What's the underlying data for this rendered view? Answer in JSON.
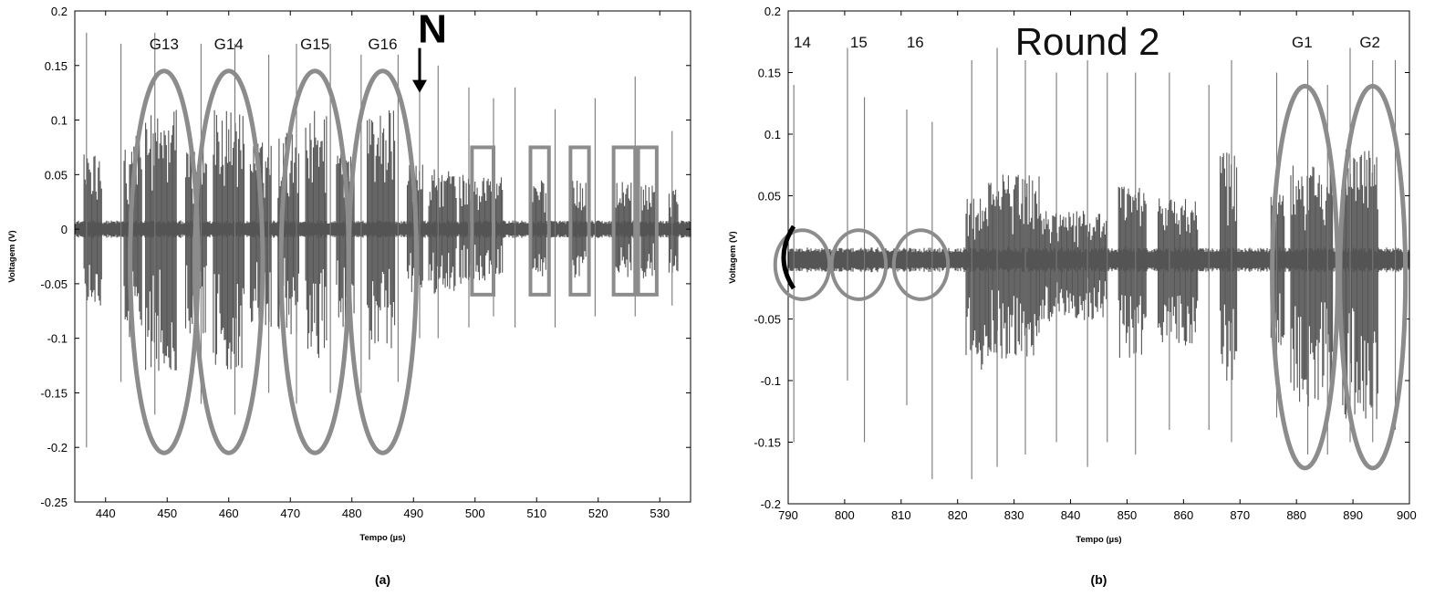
{
  "chart_data": [
    {
      "type": "line",
      "panel_label": "(a)",
      "xlabel": "Tempo (µs)",
      "ylabel": "Voltagem (V)",
      "xlim": [
        435,
        535
      ],
      "ylim": [
        -0.25,
        0.2
      ],
      "x_ticks": [
        440,
        450,
        460,
        470,
        480,
        490,
        500,
        510,
        520,
        530
      ],
      "y_ticks": [
        0.2,
        0.15,
        0.1,
        0.05,
        0,
        -0.05,
        -0.1,
        -0.15,
        -0.2,
        -0.25
      ],
      "y_tick_labels": [
        "0.2",
        "0.15",
        "0.1",
        "0.05",
        "0",
        "-0.05",
        "-0.1",
        "-0.15",
        "-0.2",
        "-0.25"
      ],
      "grid": false,
      "series": [
        {
          "baseline_amplitude": 0.008,
          "bursts": [
            {
              "start": 436.5,
              "end": 439.5,
              "pos": 0.07,
              "neg": -0.07
            },
            {
              "start": 443.0,
              "end": 446.0,
              "pos": 0.09,
              "neg": -0.1
            },
            {
              "start": 446.5,
              "end": 451.5,
              "pos": 0.11,
              "neg": -0.13
            },
            {
              "start": 453.0,
              "end": 456.5,
              "pos": 0.08,
              "neg": -0.1
            },
            {
              "start": 457.5,
              "end": 462.5,
              "pos": 0.11,
              "neg": -0.13
            },
            {
              "start": 463.5,
              "end": 467.0,
              "pos": 0.08,
              "neg": -0.1
            },
            {
              "start": 468.0,
              "end": 471.5,
              "pos": 0.09,
              "neg": -0.1
            },
            {
              "start": 472.5,
              "end": 476.0,
              "pos": 0.11,
              "neg": -0.12
            },
            {
              "start": 477.5,
              "end": 480.5,
              "pos": 0.08,
              "neg": -0.09
            },
            {
              "start": 482.5,
              "end": 487.0,
              "pos": 0.11,
              "neg": -0.12
            },
            {
              "start": 489.0,
              "end": 491.5,
              "pos": 0.06,
              "neg": -0.06
            },
            {
              "start": 492.5,
              "end": 497.0,
              "pos": 0.055,
              "neg": -0.06
            },
            {
              "start": 497.5,
              "end": 504.5,
              "pos": 0.05,
              "neg": -0.05
            },
            {
              "start": 509.0,
              "end": 511.5,
              "pos": 0.045,
              "neg": -0.045
            },
            {
              "start": 515.5,
              "end": 518.0,
              "pos": 0.045,
              "neg": -0.045
            },
            {
              "start": 522.5,
              "end": 525.5,
              "pos": 0.045,
              "neg": -0.045
            },
            {
              "start": 527.0,
              "end": 529.5,
              "pos": 0.045,
              "neg": -0.045
            },
            {
              "start": 531.5,
              "end": 533.0,
              "pos": 0.04,
              "neg": -0.04
            }
          ],
          "spikes": [
            {
              "x": 436.9,
              "pos": 0.18,
              "neg": -0.2
            },
            {
              "x": 442.5,
              "pos": 0.17,
              "neg": -0.14
            },
            {
              "x": 448.0,
              "pos": 0.18,
              "neg": -0.17
            },
            {
              "x": 455.5,
              "pos": 0.17,
              "neg": -0.16
            },
            {
              "x": 461.0,
              "pos": 0.17,
              "neg": -0.17
            },
            {
              "x": 466.5,
              "pos": 0.16,
              "neg": -0.15
            },
            {
              "x": 471.0,
              "pos": 0.17,
              "neg": -0.16
            },
            {
              "x": 476.5,
              "pos": 0.17,
              "neg": -0.15
            },
            {
              "x": 481.5,
              "pos": 0.16,
              "neg": -0.15
            },
            {
              "x": 487.5,
              "pos": 0.16,
              "neg": -0.14
            },
            {
              "x": 491.0,
              "pos": 0.14,
              "neg": -0.1
            },
            {
              "x": 494.0,
              "pos": 0.15,
              "neg": -0.1
            },
            {
              "x": 499.0,
              "pos": 0.13,
              "neg": -0.09
            },
            {
              "x": 503.0,
              "pos": 0.12,
              "neg": -0.08
            },
            {
              "x": 506.5,
              "pos": 0.13,
              "neg": -0.09
            },
            {
              "x": 513.0,
              "pos": 0.11,
              "neg": -0.09
            },
            {
              "x": 519.5,
              "pos": 0.12,
              "neg": -0.08
            },
            {
              "x": 526.0,
              "pos": 0.14,
              "neg": -0.08
            },
            {
              "x": 532.0,
              "pos": 0.09,
              "neg": -0.07
            }
          ]
        }
      ],
      "annotations": {
        "group_labels": [
          {
            "text": "G13",
            "x": 449.5,
            "y": 0.17
          },
          {
            "text": "G14",
            "x": 460.0,
            "y": 0.17
          },
          {
            "text": "G15",
            "x": 474.0,
            "y": 0.17
          },
          {
            "text": "G16",
            "x": 485.0,
            "y": 0.17
          }
        ],
        "ellipses": [
          {
            "cx": 449.5,
            "cy": -0.03,
            "rx": 5.5,
            "ry": 0.175
          },
          {
            "cx": 460.0,
            "cy": -0.03,
            "rx": 5.5,
            "ry": 0.175
          },
          {
            "cx": 474.0,
            "cy": -0.03,
            "rx": 5.5,
            "ry": 0.175
          },
          {
            "cx": 485.0,
            "cy": -0.03,
            "rx": 5.5,
            "ry": 0.175
          }
        ],
        "rectangles": [
          {
            "x0": 499.5,
            "x1": 503.0,
            "y0": -0.06,
            "y1": 0.075
          },
          {
            "x0": 509.0,
            "x1": 512.0,
            "y0": -0.06,
            "y1": 0.075
          },
          {
            "x0": 515.5,
            "x1": 518.5,
            "y0": -0.06,
            "y1": 0.075
          },
          {
            "x0": 522.5,
            "x1": 526.0,
            "y0": -0.06,
            "y1": 0.075
          },
          {
            "x0": 526.5,
            "x1": 529.5,
            "y0": -0.06,
            "y1": 0.075
          }
        ],
        "arrow": {
          "label": "N",
          "x": 491.0,
          "y_top": 0.166,
          "y_bottom": 0.125
        }
      }
    },
    {
      "type": "line",
      "panel_label": "(b)",
      "xlabel": "Tempo (µs)",
      "ylabel": "Voltagem (V)",
      "xlim": [
        790,
        900
      ],
      "ylim": [
        -0.2,
        0.2
      ],
      "x_ticks": [
        790,
        800,
        810,
        820,
        830,
        840,
        850,
        860,
        870,
        880,
        890,
        900
      ],
      "x_tick_labels": [
        "790",
        "800",
        "810",
        "820",
        "830",
        "840",
        "850",
        "860",
        "870",
        "880",
        "890",
        "900"
      ],
      "y_ticks": [
        0.2,
        0.15,
        0.1,
        0.05,
        -0.05,
        -0.1,
        -0.15,
        -0.2
      ],
      "y_tick_labels": [
        "0.2",
        "0.15",
        "0.1",
        "0.05",
        "-0.05",
        "-0.1",
        "-0.15",
        "-0.2"
      ],
      "grid": false,
      "series": [
        {
          "baseline_amplitude": 0.01,
          "baseline_center": -0.002,
          "bursts": [
            {
              "start": 821.5,
              "end": 825.5,
              "pos": 0.05,
              "neg": -0.09
            },
            {
              "start": 825.5,
              "end": 834.5,
              "pos": 0.07,
              "neg": -0.08
            },
            {
              "start": 834.5,
              "end": 846.5,
              "pos": 0.04,
              "neg": -0.05
            },
            {
              "start": 848.5,
              "end": 853.5,
              "pos": 0.06,
              "neg": -0.08
            },
            {
              "start": 855.5,
              "end": 862.5,
              "pos": 0.05,
              "neg": -0.07
            },
            {
              "start": 866.5,
              "end": 869.5,
              "pos": 0.09,
              "neg": -0.1
            },
            {
              "start": 875.5,
              "end": 878.0,
              "pos": 0.06,
              "neg": -0.07
            },
            {
              "start": 879.0,
              "end": 886.5,
              "pos": 0.08,
              "neg": -0.12
            },
            {
              "start": 888.0,
              "end": 894.5,
              "pos": 0.09,
              "neg": -0.13
            }
          ],
          "spikes": [
            {
              "x": 791.0,
              "pos": 0.14,
              "neg": -0.15
            },
            {
              "x": 800.5,
              "pos": 0.17,
              "neg": -0.1
            },
            {
              "x": 803.5,
              "pos": 0.13,
              "neg": -0.15
            },
            {
              "x": 811.0,
              "pos": 0.12,
              "neg": -0.12
            },
            {
              "x": 815.5,
              "pos": 0.11,
              "neg": -0.18
            },
            {
              "x": 822.5,
              "pos": 0.16,
              "neg": -0.18
            },
            {
              "x": 827.0,
              "pos": 0.17,
              "neg": -0.17
            },
            {
              "x": 832.0,
              "pos": 0.16,
              "neg": -0.16
            },
            {
              "x": 837.5,
              "pos": 0.15,
              "neg": -0.15
            },
            {
              "x": 843.0,
              "pos": 0.16,
              "neg": -0.17
            },
            {
              "x": 846.5,
              "pos": 0.15,
              "neg": -0.15
            },
            {
              "x": 851.5,
              "pos": 0.15,
              "neg": -0.16
            },
            {
              "x": 857.5,
              "pos": 0.15,
              "neg": -0.14
            },
            {
              "x": 864.5,
              "pos": 0.14,
              "neg": -0.14
            },
            {
              "x": 868.5,
              "pos": 0.16,
              "neg": -0.15
            },
            {
              "x": 876.5,
              "pos": 0.15,
              "neg": -0.13
            },
            {
              "x": 882.0,
              "pos": 0.16,
              "neg": -0.16
            },
            {
              "x": 885.5,
              "pos": 0.14,
              "neg": -0.16
            },
            {
              "x": 889.5,
              "pos": 0.17,
              "neg": -0.15
            },
            {
              "x": 893.5,
              "pos": 0.16,
              "neg": -0.15
            },
            {
              "x": 897.5,
              "pos": 0.16,
              "neg": -0.14
            }
          ]
        }
      ],
      "annotations": {
        "round_label": {
          "text": "Round 2",
          "x": 843.0,
          "y": 0.175
        },
        "slot_labels": [
          {
            "text": "14",
            "x": 792.5,
            "y": 0.175
          },
          {
            "text": "15",
            "x": 802.5,
            "y": 0.175
          },
          {
            "text": "16",
            "x": 812.5,
            "y": 0.175
          }
        ],
        "group_labels": [
          {
            "text": "G1",
            "x": 881.0,
            "y": 0.175
          },
          {
            "text": "G2",
            "x": 893.0,
            "y": 0.175
          }
        ],
        "circles": [
          {
            "cx": 792.5,
            "cy": -0.006,
            "rx": 4.8,
            "ry": 0.028
          },
          {
            "cx": 802.5,
            "cy": -0.006,
            "rx": 4.8,
            "ry": 0.028
          },
          {
            "cx": 813.5,
            "cy": -0.006,
            "rx": 4.8,
            "ry": 0.028
          }
        ],
        "ellipses": [
          {
            "cx": 881.5,
            "cy": -0.016,
            "rx": 5.8,
            "ry": 0.155
          },
          {
            "cx": 893.5,
            "cy": -0.016,
            "rx": 5.8,
            "ry": 0.155
          }
        ],
        "edge_bracket": {
          "x": 790.0,
          "y": 0.0
        }
      }
    }
  ],
  "colors": {
    "signal": "#555555",
    "annotation": "#8c8c8c",
    "axis": "#000000",
    "text": "#000000"
  }
}
